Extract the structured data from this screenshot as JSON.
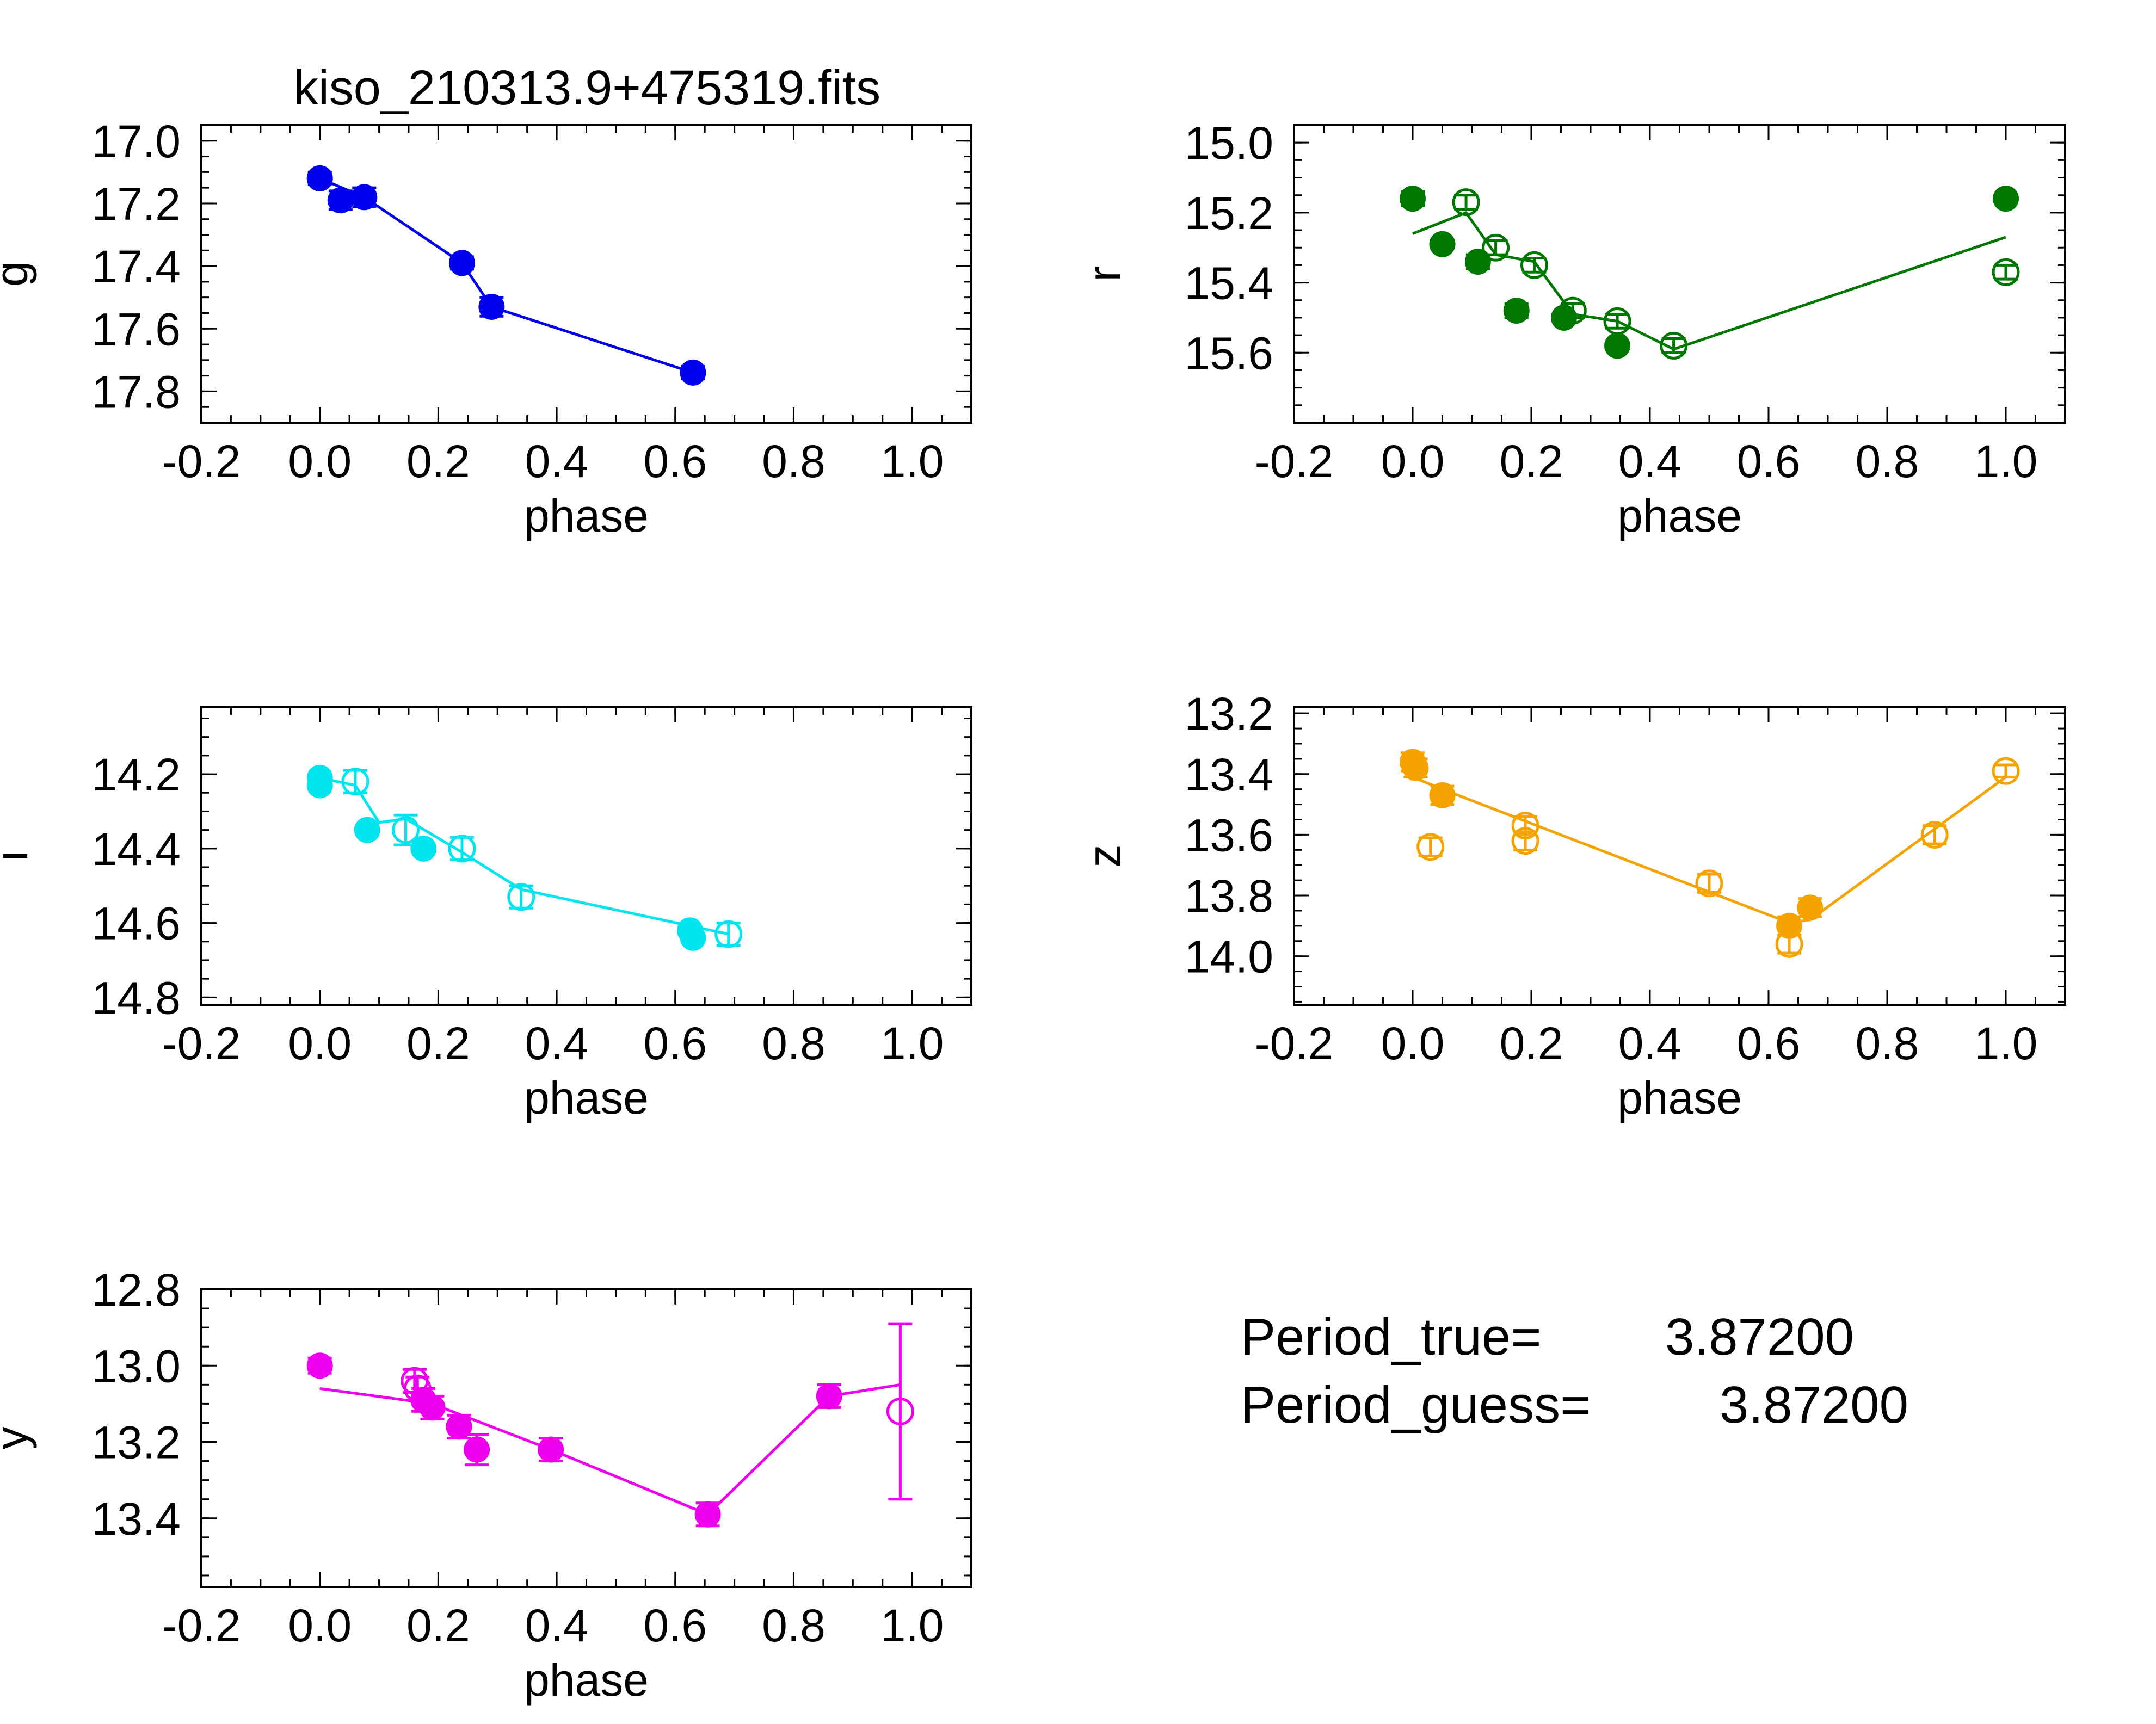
{
  "figure_title": "kiso_210313.9+475319.fits",
  "period_true_label": "Period_true=",
  "period_true_value": "3.87200",
  "period_guess_label": "Period_guess=",
  "period_guess_value": "3.87200",
  "chart_data": [
    {
      "type": "scatter",
      "band": "g",
      "color": "#0000ee",
      "title": "kiso_210313.9+475319.fits",
      "xlabel": "phase",
      "ylabel": "g",
      "xlim": [
        -0.2,
        1.1
      ],
      "ylim": [
        17.9,
        16.95
      ],
      "y_inverted": true,
      "xticks": [
        "-0.2",
        "0.0",
        "0.2",
        "0.4",
        "0.6",
        "0.8",
        "1.0"
      ],
      "yticks": [
        "17.0",
        "17.2",
        "17.4",
        "17.6",
        "17.8"
      ],
      "series": [
        {
          "kind": "filled",
          "points": [
            {
              "x": 0.0,
              "y": 17.12,
              "err": 0.02
            },
            {
              "x": 0.035,
              "y": 17.19,
              "err": 0.03
            },
            {
              "x": 0.075,
              "y": 17.18,
              "err": 0.03
            },
            {
              "x": 0.24,
              "y": 17.39,
              "err": 0.02
            },
            {
              "x": 0.29,
              "y": 17.53,
              "err": 0.03
            },
            {
              "x": 0.63,
              "y": 17.74,
              "err": 0.02
            }
          ]
        },
        {
          "kind": "open",
          "points": []
        },
        {
          "kind": "fit",
          "points": [
            {
              "x": 0.0,
              "y": 17.12
            },
            {
              "x": 0.075,
              "y": 17.18
            },
            {
              "x": 0.24,
              "y": 17.39
            },
            {
              "x": 0.29,
              "y": 17.53
            },
            {
              "x": 0.63,
              "y": 17.74
            }
          ]
        }
      ]
    },
    {
      "type": "scatter",
      "band": "r",
      "color": "#007700",
      "xlabel": "phase",
      "ylabel": "r",
      "xlim": [
        -0.2,
        1.1
      ],
      "ylim": [
        15.8,
        14.95
      ],
      "y_inverted": true,
      "xticks": [
        "-0.2",
        "0.0",
        "0.2",
        "0.4",
        "0.6",
        "0.8",
        "1.0"
      ],
      "yticks": [
        "15.0",
        "15.2",
        "15.4",
        "15.6"
      ],
      "series": [
        {
          "kind": "filled",
          "points": [
            {
              "x": 0.0,
              "y": 15.16,
              "err": 0.02
            },
            {
              "x": 0.05,
              "y": 15.29,
              "err": 0.0
            },
            {
              "x": 0.11,
              "y": 15.34,
              "err": 0.02
            },
            {
              "x": 0.175,
              "y": 15.48,
              "err": 0.02
            },
            {
              "x": 0.255,
              "y": 15.5,
              "err": 0.0
            },
            {
              "x": 0.345,
              "y": 15.58,
              "err": 0.0
            },
            {
              "x": 1.0,
              "y": 15.16,
              "err": 0.0
            }
          ]
        },
        {
          "kind": "open",
          "points": [
            {
              "x": 0.09,
              "y": 15.17,
              "err": 0.02
            },
            {
              "x": 0.14,
              "y": 15.3,
              "err": 0.02
            },
            {
              "x": 0.205,
              "y": 15.35,
              "err": 0.02
            },
            {
              "x": 0.27,
              "y": 15.48,
              "err": 0.02
            },
            {
              "x": 0.345,
              "y": 15.51,
              "err": 0.02
            },
            {
              "x": 0.44,
              "y": 15.58,
              "err": 0.02
            },
            {
              "x": 1.0,
              "y": 15.37,
              "err": 0.02
            }
          ]
        },
        {
          "kind": "fit",
          "points": [
            {
              "x": 0.0,
              "y": 15.26
            },
            {
              "x": 0.09,
              "y": 15.2
            },
            {
              "x": 0.14,
              "y": 15.32
            },
            {
              "x": 0.205,
              "y": 15.34
            },
            {
              "x": 0.27,
              "y": 15.49
            },
            {
              "x": 0.345,
              "y": 15.51
            },
            {
              "x": 0.44,
              "y": 15.59
            },
            {
              "x": 1.0,
              "y": 15.27
            }
          ]
        }
      ]
    },
    {
      "type": "scatter",
      "band": "i",
      "color": "#00e5ee",
      "xlabel": "phase",
      "ylabel": "i",
      "xlim": [
        -0.2,
        1.1
      ],
      "ylim": [
        14.82,
        14.02
      ],
      "y_inverted": true,
      "xticks": [
        "-0.2",
        "0.0",
        "0.2",
        "0.4",
        "0.6",
        "0.8",
        "1.0"
      ],
      "yticks": [
        "14.2",
        "14.4",
        "14.6",
        "14.8"
      ],
      "series": [
        {
          "kind": "filled",
          "points": [
            {
              "x": 0.0,
              "y": 14.21,
              "err": 0.0
            },
            {
              "x": 0.0,
              "y": 14.23,
              "err": 0.0
            },
            {
              "x": 0.08,
              "y": 14.35,
              "err": 0.0
            },
            {
              "x": 0.175,
              "y": 14.4,
              "err": 0.0
            },
            {
              "x": 0.625,
              "y": 14.62,
              "err": 0.0
            },
            {
              "x": 0.63,
              "y": 14.64,
              "err": 0.0
            }
          ]
        },
        {
          "kind": "open",
          "points": [
            {
              "x": 0.06,
              "y": 14.22,
              "err": 0.03
            },
            {
              "x": 0.145,
              "y": 14.35,
              "err": 0.04
            },
            {
              "x": 0.24,
              "y": 14.4,
              "err": 0.03
            },
            {
              "x": 0.34,
              "y": 14.53,
              "err": 0.03
            },
            {
              "x": 0.69,
              "y": 14.63,
              "err": 0.03
            }
          ]
        },
        {
          "kind": "fit",
          "points": [
            {
              "x": 0.0,
              "y": 14.21
            },
            {
              "x": 0.06,
              "y": 14.23
            },
            {
              "x": 0.1,
              "y": 14.33
            },
            {
              "x": 0.145,
              "y": 14.32
            },
            {
              "x": 0.24,
              "y": 14.41
            },
            {
              "x": 0.34,
              "y": 14.51
            },
            {
              "x": 0.69,
              "y": 14.63
            }
          ]
        }
      ]
    },
    {
      "type": "scatter",
      "band": "z",
      "color": "#f5a300",
      "xlabel": "phase",
      "ylabel": "z",
      "xlim": [
        -0.2,
        1.1
      ],
      "ylim": [
        14.16,
        13.18
      ],
      "y_inverted": true,
      "xticks": [
        "-0.2",
        "0.0",
        "0.2",
        "0.4",
        "0.6",
        "0.8",
        "1.0"
      ],
      "yticks": [
        "13.2",
        "13.4",
        "13.6",
        "13.8",
        "14.0"
      ],
      "series": [
        {
          "kind": "filled",
          "points": [
            {
              "x": 0.0,
              "y": 13.36,
              "err": 0.03
            },
            {
              "x": 0.005,
              "y": 13.38,
              "err": 0.03
            },
            {
              "x": 0.05,
              "y": 13.47,
              "err": 0.03
            },
            {
              "x": 0.635,
              "y": 13.9,
              "err": 0.03
            },
            {
              "x": 0.67,
              "y": 13.84,
              "err": 0.03
            }
          ]
        },
        {
          "kind": "open",
          "points": [
            {
              "x": 0.03,
              "y": 13.64,
              "err": 0.03
            },
            {
              "x": 0.19,
              "y": 13.57,
              "err": 0.03
            },
            {
              "x": 0.19,
              "y": 13.62,
              "err": 0.03
            },
            {
              "x": 0.5,
              "y": 13.76,
              "err": 0.03
            },
            {
              "x": 0.635,
              "y": 13.96,
              "err": 0.03
            },
            {
              "x": 0.88,
              "y": 13.6,
              "err": 0.03
            },
            {
              "x": 1.0,
              "y": 13.39,
              "err": 0.02
            }
          ]
        },
        {
          "kind": "fit",
          "points": [
            {
              "x": 0.0,
              "y": 13.41
            },
            {
              "x": 0.05,
              "y": 13.45
            },
            {
              "x": 0.635,
              "y": 13.89
            },
            {
              "x": 0.67,
              "y": 13.88
            },
            {
              "x": 1.0,
              "y": 13.41
            }
          ]
        }
      ]
    },
    {
      "type": "scatter",
      "band": "y",
      "color": "#ee00ee",
      "xlabel": "phase",
      "ylabel": "y",
      "xlim": [
        -0.2,
        1.1
      ],
      "ylim": [
        13.58,
        12.8
      ],
      "y_inverted": true,
      "xticks": [
        "-0.2",
        "0.0",
        "0.2",
        "0.4",
        "0.6",
        "0.8",
        "1.0"
      ],
      "yticks": [
        "12.8",
        "13.0",
        "13.2",
        "13.4"
      ],
      "series": [
        {
          "kind": "filled",
          "points": [
            {
              "x": 0.0,
              "y": 13.0,
              "err": 0.02
            },
            {
              "x": 0.175,
              "y": 13.09,
              "err": 0.03
            },
            {
              "x": 0.19,
              "y": 13.11,
              "err": 0.03
            },
            {
              "x": 0.235,
              "y": 13.16,
              "err": 0.03
            },
            {
              "x": 0.265,
              "y": 13.22,
              "err": 0.04
            },
            {
              "x": 0.39,
              "y": 13.22,
              "err": 0.03
            },
            {
              "x": 0.655,
              "y": 13.39,
              "err": 0.03
            },
            {
              "x": 0.86,
              "y": 13.08,
              "err": 0.03
            }
          ]
        },
        {
          "kind": "open",
          "points": [
            {
              "x": 0.16,
              "y": 13.04,
              "err": 0.03
            },
            {
              "x": 0.165,
              "y": 13.06,
              "err": 0.03
            },
            {
              "x": 0.98,
              "y": 13.12,
              "err": 0.23
            }
          ]
        },
        {
          "kind": "fit",
          "points": [
            {
              "x": 0.0,
              "y": 13.06
            },
            {
              "x": 0.19,
              "y": 13.1
            },
            {
              "x": 0.39,
              "y": 13.22
            },
            {
              "x": 0.655,
              "y": 13.39
            },
            {
              "x": 0.86,
              "y": 13.08
            },
            {
              "x": 0.98,
              "y": 13.05
            }
          ]
        }
      ]
    }
  ]
}
